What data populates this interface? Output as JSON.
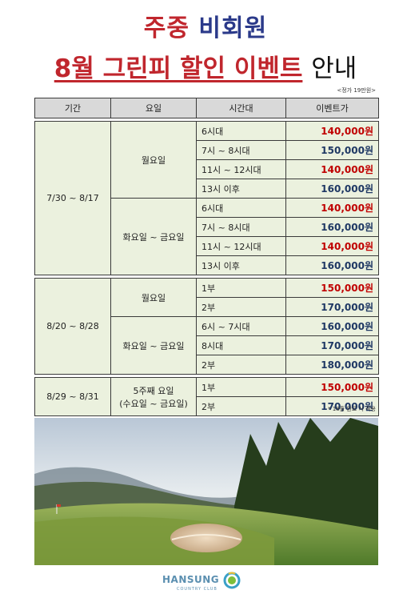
{
  "header": {
    "title_line1_part1": "주중",
    "title_line1_part2": "비회원",
    "title_line2_part1": "8월 그린피 할인 이벤트",
    "title_line2_part2": "안내",
    "price_note": "<정가 19만원>"
  },
  "table": {
    "columns": [
      "기간",
      "요일",
      "시간대",
      "이벤트가"
    ],
    "blocks": [
      {
        "period": "7/30 ~ 8/17",
        "groups": [
          {
            "day": "월요일",
            "rows": [
              {
                "time": "6시대",
                "price": "140,000원",
                "color": "#c00000"
              },
              {
                "time": "7시 ~ 8시대",
                "price": "150,000원",
                "color": "#1f3864"
              },
              {
                "time": "11시 ~ 12시대",
                "price": "140,000원",
                "color": "#c00000"
              },
              {
                "time": "13시 이후",
                "price": "160,000원",
                "color": "#1f3864"
              }
            ]
          },
          {
            "day": "화요일 ~ 금요일",
            "rows": [
              {
                "time": "6시대",
                "price": "140,000원",
                "color": "#c00000"
              },
              {
                "time": "7시 ~ 8시대",
                "price": "160,000원",
                "color": "#1f3864"
              },
              {
                "time": "11시 ~ 12시대",
                "price": "140,000원",
                "color": "#c00000"
              },
              {
                "time": "13시 이후",
                "price": "160,000원",
                "color": "#1f3864"
              }
            ]
          }
        ]
      },
      {
        "period": "8/20 ~ 8/28",
        "groups": [
          {
            "day": "월요일",
            "rows": [
              {
                "time": "1부",
                "price": "150,000원",
                "color": "#c00000"
              },
              {
                "time": "2부",
                "price": "170,000원",
                "color": "#1f3864"
              }
            ]
          },
          {
            "day": "화요일 ~ 금요일",
            "rows": [
              {
                "time": "6시 ~ 7시대",
                "price": "160,000원",
                "color": "#1f3864"
              },
              {
                "time": "8시대",
                "price": "170,000원",
                "color": "#1f3864"
              },
              {
                "time": "2부",
                "price": "180,000원",
                "color": "#1f3864"
              }
            ]
          }
        ]
      },
      {
        "period": "8/29 ~ 8/31",
        "groups": [
          {
            "day_line1": "5주째 요일",
            "day_line2": "(수요일 ~ 금요일)",
            "rows": [
              {
                "time": "1부",
                "price": "150,000원",
                "color": "#c00000"
              },
              {
                "time": "2부",
                "price": "170,000원",
                "color": "#1f3864"
              }
            ]
          }
        ]
      }
    ]
  },
  "footnote": "* 18홀 완료 시 적용",
  "logo": {
    "name": "HANSUNG",
    "sub": "COUNTRY CLUB"
  },
  "colors": {
    "accent_red": "#c0262d",
    "accent_navy": "#2b3a8a",
    "cell_green": "#ebf1de",
    "header_gray": "#d9d9d9"
  }
}
